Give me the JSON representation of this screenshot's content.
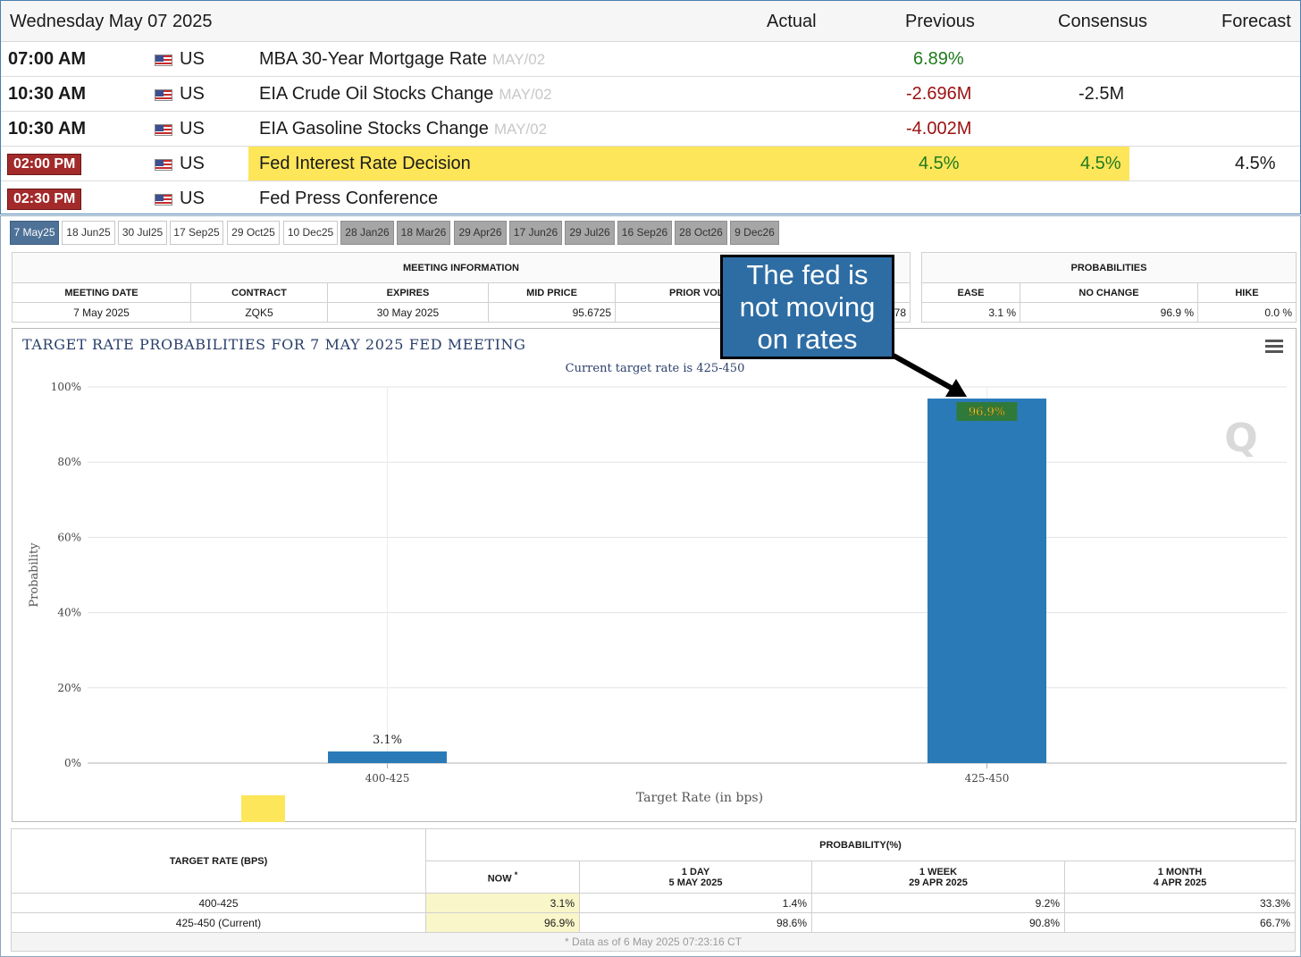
{
  "calendar": {
    "date": "Wednesday May 07 2025",
    "columns": {
      "actual": "Actual",
      "previous": "Previous",
      "consensus": "Consensus",
      "forecast": "Forecast"
    },
    "rows": [
      {
        "time": "07:00 AM",
        "country": "US",
        "event": "MBA 30-Year Mortgage Rate",
        "ref": "MAY/02",
        "actual": "",
        "previous": "6.89%",
        "consensus": "",
        "forecast": ""
      },
      {
        "time": "10:30 AM",
        "country": "US",
        "event": "EIA Crude Oil Stocks Change",
        "ref": "MAY/02",
        "actual": "",
        "previous": "-2.696M",
        "consensus": "-2.5M",
        "forecast": ""
      },
      {
        "time": "10:30 AM",
        "country": "US",
        "event": "EIA Gasoline Stocks Change",
        "ref": "MAY/02",
        "actual": "",
        "previous": "-4.002M",
        "consensus": "",
        "forecast": ""
      },
      {
        "time": "02:00 PM",
        "country": "US",
        "event": "Fed Interest Rate Decision",
        "ref": "",
        "actual": "",
        "previous": "4.5%",
        "consensus": "4.5%",
        "forecast": "4.5%"
      },
      {
        "time": "02:30 PM",
        "country": "US",
        "event": "Fed Press Conference",
        "ref": "",
        "actual": "",
        "previous": "",
        "consensus": "",
        "forecast": ""
      }
    ]
  },
  "meeting_tabs": [
    "7 May25",
    "18 Jun25",
    "30 Jul25",
    "17 Sep25",
    "29 Oct25",
    "10 Dec25",
    "28 Jan26",
    "18 Mar26",
    "29 Apr26",
    "17 Jun26",
    "29 Jul26",
    "16 Sep26",
    "28 Oct26",
    "9 Dec26"
  ],
  "meeting_info": {
    "title": "MEETING INFORMATION",
    "headers": [
      "MEETING DATE",
      "CONTRACT",
      "EXPIRES",
      "MID PRICE",
      "PRIOR VOLUME"
    ],
    "values": [
      "7 May 2025",
      "ZQK5",
      "30 May 2025",
      "95.6725",
      "78"
    ]
  },
  "probabilities": {
    "title": "PROBABILITIES",
    "headers": [
      "EASE",
      "NO CHANGE",
      "HIKE"
    ],
    "values": [
      "3.1 %",
      "96.9 %",
      "0.0 %"
    ]
  },
  "callout": {
    "line1": "The fed is",
    "line2": "not moving",
    "line3": "on rates"
  },
  "chart_data": {
    "type": "bar",
    "title": "TARGET RATE PROBABILITIES FOR 7 MAY 2025 FED MEETING",
    "subtitle": "Current target rate is 425-450",
    "categories": [
      "400-425",
      "425-450"
    ],
    "values": [
      3.1,
      96.9
    ],
    "data_labels": [
      "3.1%",
      "96.9%"
    ],
    "xlabel": "Target Rate (in bps)",
    "ylabel": "Probability",
    "ylim": [
      0,
      100
    ],
    "yticks": [
      0,
      20,
      40,
      60,
      80,
      100
    ],
    "ytick_labels": [
      "0%",
      "20%",
      "40%",
      "60%",
      "80%",
      "100%"
    ],
    "bar_color": "#2a7ab8",
    "grid": true
  },
  "prob_table": {
    "target_header": "TARGET RATE (BPS)",
    "group_header": "PROBABILITY(%)",
    "now_header": "NOW",
    "now_marker": "*",
    "day_header": "1 DAY",
    "day_date": "5 MAY 2025",
    "week_header": "1 WEEK",
    "week_date": "29 APR 2025",
    "month_header": "1 MONTH",
    "month_date": "4 APR 2025",
    "rows": [
      {
        "rate": "400-425",
        "now": "3.1%",
        "day": "1.4%",
        "week": "9.2%",
        "month": "33.3%"
      },
      {
        "rate": "425-450 (Current)",
        "now": "96.9%",
        "day": "98.6%",
        "week": "90.8%",
        "month": "66.7%"
      }
    ],
    "footnote": "* Data as of 6 May 2025 07:23:16 CT"
  }
}
